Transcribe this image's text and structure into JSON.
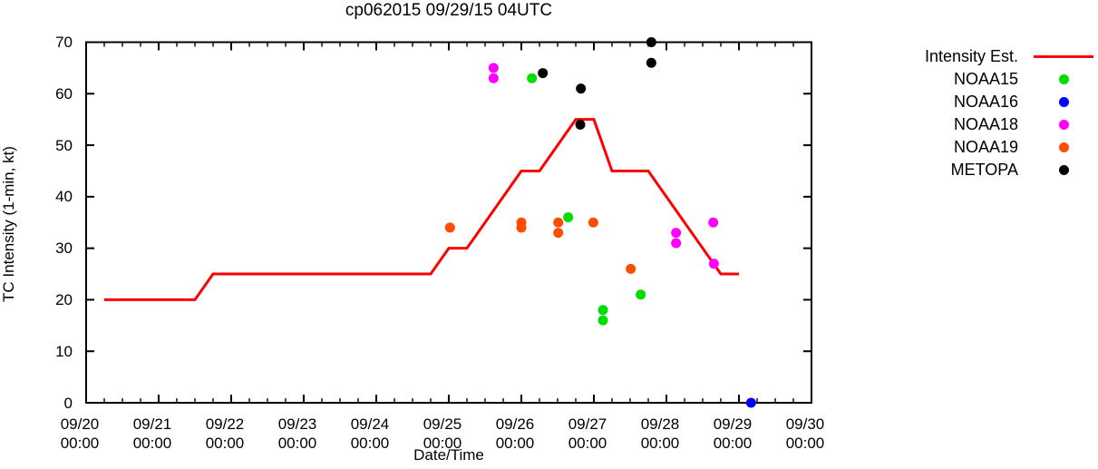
{
  "title": "cp062015 09/29/15 04UTC",
  "axes": {
    "xlabel": "Date/Time",
    "ylabel": "TC Intensity (1-min, kt)"
  },
  "legend": {
    "items": [
      {
        "label": "Intensity Est.",
        "marker": "line",
        "color": "#ff0000"
      },
      {
        "label": "NOAA15",
        "marker": "dot",
        "color": "#00dd00"
      },
      {
        "label": "NOAA16",
        "marker": "dot",
        "color": "#0000ff"
      },
      {
        "label": "NOAA18",
        "marker": "dot",
        "color": "#ff00ff"
      },
      {
        "label": "NOAA19",
        "marker": "dot",
        "color": "#ff4d00"
      },
      {
        "label": "METOPA",
        "marker": "dot",
        "color": "#000000"
      }
    ]
  },
  "chart_data": {
    "type": "line",
    "x_unit": "hours since 09/20 00:00",
    "x_range_hours": [
      0,
      240
    ],
    "x_major_tick_hours": 24,
    "x_minor_tick_hours": 6,
    "xtick_labels": [
      {
        "date": "09/20",
        "time": "00:00"
      },
      {
        "date": "09/21",
        "time": "00:00"
      },
      {
        "date": "09/22",
        "time": "00:00"
      },
      {
        "date": "09/23",
        "time": "00:00"
      },
      {
        "date": "09/24",
        "time": "00:00"
      },
      {
        "date": "09/25",
        "time": "00:00"
      },
      {
        "date": "09/26",
        "time": "00:00"
      },
      {
        "date": "09/27",
        "time": "00:00"
      },
      {
        "date": "09/28",
        "time": "00:00"
      },
      {
        "date": "09/29",
        "time": "00:00"
      },
      {
        "date": "09/30",
        "time": "00:00"
      }
    ],
    "ylim": [
      0,
      70
    ],
    "ytick_step": 10,
    "ytick_labels": [
      "0",
      "10",
      "20",
      "30",
      "40",
      "50",
      "60",
      "70"
    ],
    "line_series": {
      "name": "Intensity Est.",
      "color": "#ff0000",
      "points": [
        [
          6,
          20
        ],
        [
          36,
          20
        ],
        [
          42,
          25
        ],
        [
          114,
          25
        ],
        [
          120,
          30
        ],
        [
          126,
          30
        ],
        [
          144,
          45
        ],
        [
          150,
          45
        ],
        [
          162,
          55
        ],
        [
          168,
          55
        ],
        [
          174,
          45
        ],
        [
          186,
          45
        ],
        [
          210,
          25
        ],
        [
          216,
          25
        ]
      ]
    },
    "scatter_series": [
      {
        "name": "NOAA15",
        "color": "#00dd00",
        "points": [
          [
            147.5,
            63
          ],
          [
            159.5,
            36
          ],
          [
            171,
            18
          ],
          [
            171,
            16
          ],
          [
            183.5,
            21
          ]
        ]
      },
      {
        "name": "NOAA16",
        "color": "#0000ff",
        "points": [
          [
            220,
            0
          ]
        ]
      },
      {
        "name": "NOAA18",
        "color": "#ff00ff",
        "points": [
          [
            134.8,
            65
          ],
          [
            134.8,
            63
          ],
          [
            195.2,
            33
          ],
          [
            195.2,
            31
          ],
          [
            207.5,
            35
          ],
          [
            207.7,
            27
          ]
        ]
      },
      {
        "name": "NOAA19",
        "color": "#ff4d00",
        "points": [
          [
            120.4,
            34
          ],
          [
            144,
            35
          ],
          [
            144,
            34
          ],
          [
            156.2,
            35
          ],
          [
            156.2,
            33
          ],
          [
            167.8,
            35
          ],
          [
            180.2,
            26
          ]
        ]
      },
      {
        "name": "METOPA",
        "color": "#000000",
        "points": [
          [
            151.1,
            64
          ],
          [
            163.7,
            61
          ],
          [
            163.5,
            54
          ],
          [
            187,
            70
          ],
          [
            187,
            66
          ]
        ]
      }
    ]
  }
}
